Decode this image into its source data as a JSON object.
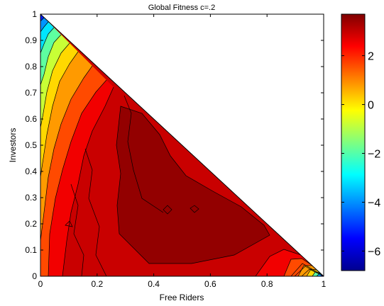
{
  "chart_data": {
    "type": "heatmap",
    "subtype": "filled-contour",
    "title": "Global Fitness c=.2",
    "xlabel": "Free Riders",
    "ylabel": "Investors",
    "xlim": [
      0,
      1
    ],
    "ylim": [
      0,
      1
    ],
    "x_ticks": [
      0,
      0.2,
      0.4,
      0.6,
      0.8,
      1
    ],
    "x_tick_labels": [
      "0",
      "0.2",
      "0.4",
      "0.6",
      "0.8",
      "1"
    ],
    "y_ticks": [
      0,
      0.1,
      0.2,
      0.3,
      0.4,
      0.5,
      0.6,
      0.7,
      0.8,
      0.9,
      1
    ],
    "y_tick_labels": [
      "0",
      "0.1",
      "0.2",
      "0.3",
      "0.4",
      "0.5",
      "0.6",
      "0.7",
      "0.8",
      "0.9",
      "1"
    ],
    "domain_constraint": "x + y <= 1",
    "colormap": "jet",
    "colorbar": {
      "range": [
        -6.8,
        3.7
      ],
      "ticks": [
        2,
        0,
        -2,
        -4,
        -6
      ],
      "tick_labels": [
        "2",
        "0",
        "−2",
        "−4",
        "−6"
      ]
    },
    "grid": false,
    "legend": "none",
    "value_samples": [
      {
        "x": 0.45,
        "y": 0.3,
        "value": 3.5
      },
      {
        "x": 0.3,
        "y": 0.3,
        "value": 3.2
      },
      {
        "x": 0.12,
        "y": 0.3,
        "value": 2.8
      },
      {
        "x": 0.05,
        "y": 0.5,
        "value": 0.5
      },
      {
        "x": 0.02,
        "y": 0.85,
        "value": -3.0
      },
      {
        "x": 0.01,
        "y": 0.97,
        "value": -6.0
      },
      {
        "x": 0.8,
        "y": 0.05,
        "value": 2.8
      },
      {
        "x": 0.97,
        "y": 0.01,
        "value": -6.0
      }
    ]
  }
}
